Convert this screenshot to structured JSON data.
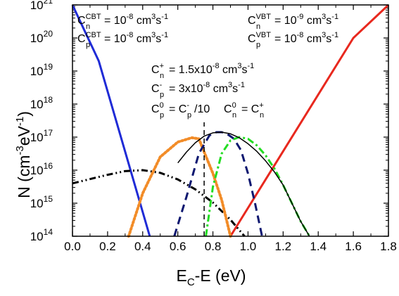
{
  "chart_data": {
    "type": "line",
    "title": "",
    "xlabel": {
      "main": "E",
      "sub": "C",
      "rest": "-E (eV)"
    },
    "ylabel": {
      "main": "N (cm",
      "sup1": "-3",
      "mid": "eV",
      "sup2": "-1",
      "end": ")"
    },
    "xlim": [
      0.0,
      1.8
    ],
    "ylim_log10": [
      14,
      21
    ],
    "y_scale": "log",
    "x_ticks": [
      {
        "v": 0.0,
        "label": "0.0"
      },
      {
        "v": 0.2,
        "label": "0.2"
      },
      {
        "v": 0.4,
        "label": "0.4"
      },
      {
        "v": 0.6,
        "label": "0.6"
      },
      {
        "v": 0.8,
        "label": "0.8"
      },
      {
        "v": 1.0,
        "label": "1.0"
      },
      {
        "v": 1.2,
        "label": "1.2"
      },
      {
        "v": 1.4,
        "label": "1.4"
      },
      {
        "v": 1.6,
        "label": "1.6"
      },
      {
        "v": 1.8,
        "label": "1.8"
      }
    ],
    "y_ticks": [
      {
        "e": 14,
        "base": "10",
        "exp": "14"
      },
      {
        "e": 15,
        "base": "10",
        "exp": "15"
      },
      {
        "e": 16,
        "base": "10",
        "exp": "16"
      },
      {
        "e": 17,
        "base": "10",
        "exp": "17"
      },
      {
        "e": 18,
        "base": "10",
        "exp": "18"
      },
      {
        "e": 19,
        "base": "10",
        "exp": "19"
      },
      {
        "e": 20,
        "base": "10",
        "exp": "20"
      },
      {
        "e": 21,
        "base": "10",
        "exp": "21"
      }
    ],
    "series": [
      {
        "color": "#1f2bd6",
        "style": "solid",
        "x": [
          0.0,
          0.15,
          0.44
        ],
        "log10_y": [
          21.0,
          19.3,
          14.0
        ]
      },
      {
        "color": "#e8281e",
        "style": "solid",
        "x": [
          0.9,
          1.6,
          1.8
        ],
        "log10_y": [
          14.0,
          20.0,
          21.0
        ]
      },
      {
        "color": "#000000",
        "style": "dashdotdot",
        "x": [
          0.0,
          0.1,
          0.2,
          0.3,
          0.4,
          0.5,
          0.6,
          0.7,
          0.8,
          0.9,
          0.98
        ],
        "log10_y": [
          15.6,
          15.73,
          15.86,
          15.97,
          16.0,
          15.92,
          15.72,
          15.42,
          15.02,
          14.5,
          14.0
        ]
      },
      {
        "color": "#f28c28",
        "style": "dotted",
        "x": [
          0.32,
          0.4,
          0.5,
          0.6,
          0.68,
          0.72,
          0.75,
          0.8,
          0.85,
          0.9
        ],
        "log10_y": [
          14.0,
          15.3,
          16.4,
          16.85,
          16.98,
          16.95,
          16.55,
          15.9,
          15.1,
          14.0
        ]
      },
      {
        "color": "#0d1770",
        "style": "dashed",
        "x": [
          0.58,
          0.65,
          0.72,
          0.78,
          0.82,
          0.85,
          0.88,
          0.92,
          0.96,
          1.0,
          1.04,
          1.08
        ],
        "log10_y": [
          14.0,
          15.2,
          16.5,
          17.05,
          17.15,
          17.15,
          17.1,
          16.95,
          16.6,
          15.9,
          15.0,
          14.0
        ]
      },
      {
        "color": "#22dd22",
        "style": "dashdot",
        "x": [
          0.76,
          0.8,
          0.85,
          0.9,
          0.95,
          1.0,
          1.05,
          1.1,
          1.15,
          1.2,
          1.25,
          1.3,
          1.35
        ],
        "log10_y": [
          14.0,
          15.5,
          16.5,
          16.9,
          17.0,
          16.95,
          16.75,
          16.45,
          16.05,
          15.55,
          15.0,
          14.45,
          14.0
        ]
      },
      {
        "color": "#000000",
        "style": "solid-thin",
        "x": [
          0.6,
          0.65,
          0.7,
          0.75,
          0.8,
          0.85,
          0.9,
          0.95,
          1.0,
          1.05,
          1.1,
          1.15,
          1.2,
          1.25,
          1.3,
          1.35
        ],
        "log10_y": [
          16.22,
          16.55,
          16.83,
          17.03,
          17.13,
          17.15,
          17.1,
          16.98,
          16.8,
          16.57,
          16.28,
          15.95,
          15.55,
          15.0,
          14.45,
          14.0
        ]
      },
      {
        "color": "#000000",
        "style": "dashed-vertical",
        "x": [
          0.75,
          0.75
        ],
        "log10_y": [
          14.0,
          17.45
        ]
      }
    ],
    "annotations": {
      "cn_cbt": {
        "base": "C",
        "sup": "CBT",
        "sub": "n",
        "rest": "= 10",
        "rest_sup": "-8",
        "unit": " cm",
        "unit_sup": "3",
        "unit2": "s",
        "unit2_sup": "-1"
      },
      "cp_cbt": {
        "base": "C",
        "sup": "CBT",
        "sub": "p",
        "rest": "= 10",
        "rest_sup": "-8",
        "unit": " cm",
        "unit_sup": "3",
        "unit2": "s",
        "unit2_sup": "-1"
      },
      "cn_vbt": {
        "base": "C",
        "sup": "VBT",
        "sub": "n",
        "rest": "= 10",
        "rest_sup": "-9",
        "unit": " cm",
        "unit_sup": "3",
        "unit2": "s",
        "unit2_sup": "-1"
      },
      "cp_vbt": {
        "base": "C",
        "sup": "VBT",
        "sub": "p",
        "rest": "= 10",
        "rest_sup": "-8",
        "unit": " cm",
        "unit_sup": "3",
        "unit2": "s",
        "unit2_sup": "-1"
      },
      "cn_plus": {
        "base": "C",
        "sup": "+",
        "sub": "n",
        "rest": "= 1.5x10",
        "rest_sup": "-8",
        "unit": " cm",
        "unit_sup": "3",
        "unit2": "s",
        "unit2_sup": "-1"
      },
      "cp_minus": {
        "base": "C",
        "sup": "-",
        "sub": "p",
        "rest": "= 3x10",
        "rest_sup": "-8",
        "unit": " cm",
        "unit_sup": "3",
        "unit2": "s",
        "unit2_sup": "-1"
      },
      "cp_zero": {
        "base": "C",
        "sup": "0",
        "sub": "p",
        "mid": "= C",
        "mid_sup": "-",
        "mid_sub": "p",
        "tail": "/10"
      },
      "cn_zero": {
        "base": "C",
        "sup": "0",
        "sub": "n",
        "mid": "= C",
        "mid_sup": "+",
        "mid_sub": "n",
        "tail": ""
      }
    }
  }
}
